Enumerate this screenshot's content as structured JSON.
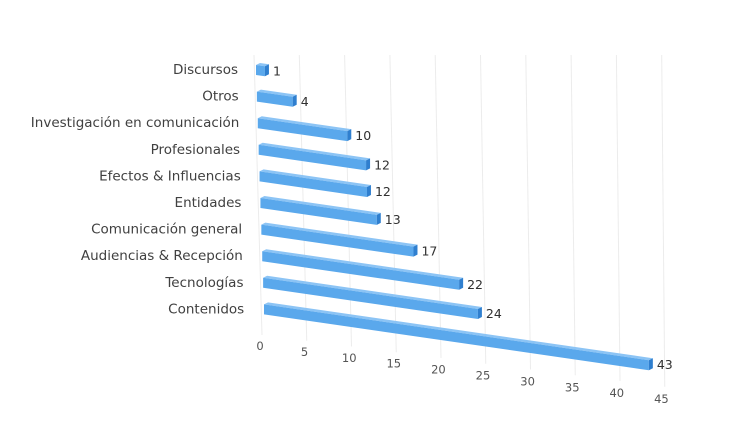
{
  "chart_data": {
    "type": "bar",
    "orientation": "horizontal",
    "style": "3d-perspective",
    "title": "",
    "xlabel": "",
    "ylabel": "",
    "categories": [
      "Discursos",
      "Otros",
      "Investigación en comunicación",
      "Profesionales",
      "Efectos & Influencias",
      "Entidades",
      "Comunicación general",
      "Audiencias & Recepción",
      "Tecnologías",
      "Contenidos"
    ],
    "values": [
      1,
      4,
      10,
      12,
      12,
      13,
      17,
      22,
      24,
      43
    ],
    "data_labels": [
      "1",
      "4",
      "10",
      "12",
      "12",
      "13",
      "17",
      "22",
      "24",
      "43"
    ],
    "xlim": [
      0,
      45
    ],
    "x_ticks": [
      "0",
      "5",
      "10",
      "15",
      "20",
      "25",
      "30",
      "35",
      "40",
      "45"
    ],
    "grid": true,
    "legend": null,
    "bar_color": "#5aa8ec",
    "bar_top_color": "#8cc4f5",
    "bar_end_color": "#2f7fcf"
  }
}
